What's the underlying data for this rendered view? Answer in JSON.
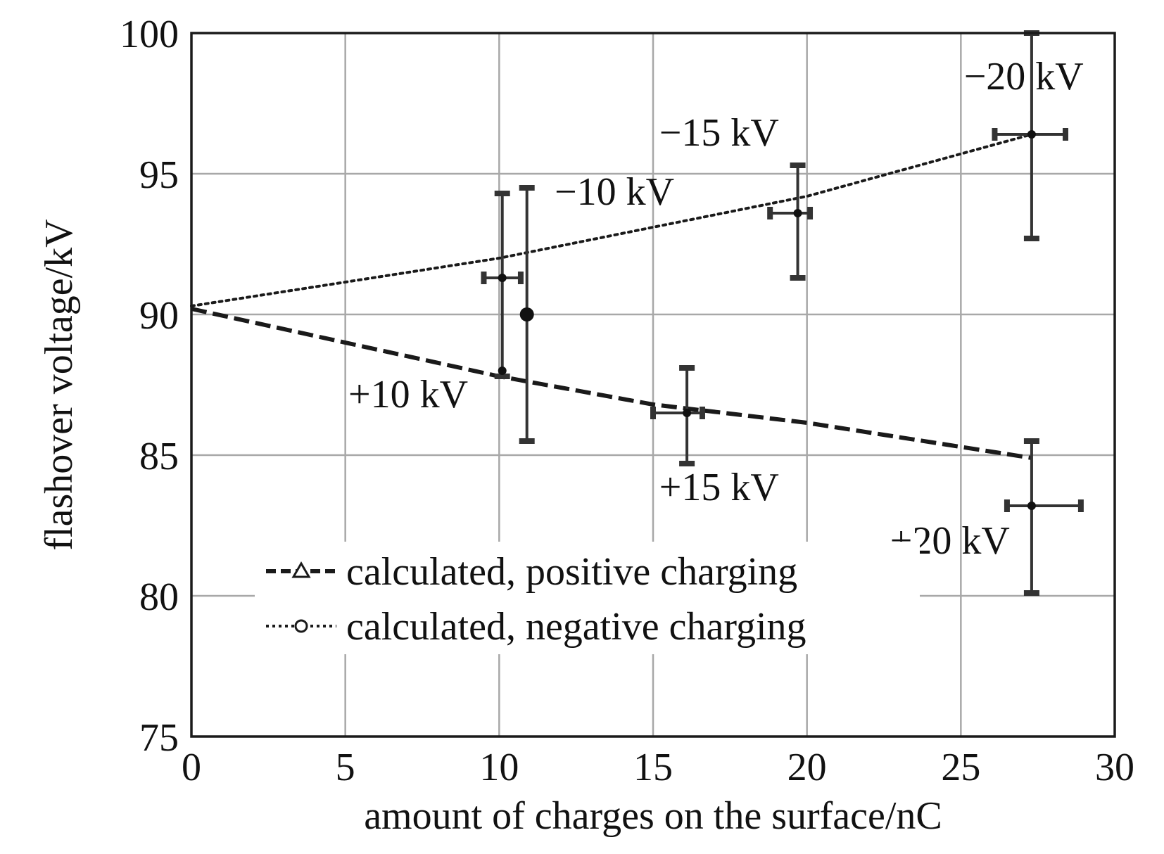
{
  "chart_data": {
    "type": "line",
    "xlabel": "amount of charges on the surface/nC",
    "ylabel": "flashover voltage/kV",
    "xlim": [
      0,
      30
    ],
    "ylim": [
      75,
      100
    ],
    "x_ticks": [
      "0",
      "5",
      "10",
      "15",
      "20",
      "25",
      "30"
    ],
    "y_ticks": [
      "75",
      "80",
      "85",
      "90",
      "95",
      "100"
    ],
    "grid": true,
    "legend_position": "lower-left",
    "series": [
      {
        "name": "calculated, positive charging",
        "line_style": "dashed",
        "marker": "triangle",
        "x": [
          0,
          10,
          15,
          20,
          27.3
        ],
        "y": [
          90.2,
          87.8,
          86.8,
          86.15,
          84.9
        ]
      },
      {
        "name": "calculated, negative charging",
        "line_style": "dotted",
        "marker": "circle",
        "x": [
          0,
          10,
          15,
          20,
          27.3
        ],
        "y": [
          90.3,
          92.0,
          93.1,
          94.2,
          96.4
        ]
      }
    ],
    "measurements": [
      {
        "label": "+10 kV",
        "x": 10.1,
        "y": 88.0,
        "x_err": [
          10.1,
          10.1
        ],
        "y_err": [
          87.8,
          94.3
        ]
      },
      {
        "label": "-10 kV",
        "x": 10.1,
        "y": 91.3,
        "x_err": [
          9.5,
          10.7
        ],
        "y_err": [
          91.3,
          91.3
        ]
      },
      {
        "label": "",
        "x": 10.9,
        "y": 90.0,
        "x_err": [
          10.9,
          10.9
        ],
        "y_err": [
          85.5,
          94.5
        ]
      },
      {
        "label": "+15 kV",
        "x": 16.1,
        "y": 86.5,
        "x_err": [
          15.0,
          16.6
        ],
        "y_err": [
          84.7,
          88.1
        ]
      },
      {
        "label": "-15 kV",
        "x": 19.7,
        "y": 93.6,
        "x_err": [
          18.8,
          20.1
        ],
        "y_err": [
          91.3,
          95.3
        ]
      },
      {
        "label": "-20 kV",
        "x": 27.3,
        "y": 96.4,
        "x_err": [
          26.1,
          28.4
        ],
        "y_err": [
          92.7,
          100
        ]
      },
      {
        "label": "+20 kV",
        "x": 27.3,
        "y": 83.2,
        "x_err": [
          26.5,
          28.9
        ],
        "y_err": [
          80.1,
          85.5
        ]
      }
    ],
    "annotations": [
      {
        "text": "−20 kV",
        "x": 25.1,
        "y": 98.0
      },
      {
        "text": "−15 kV",
        "x": 15.2,
        "y": 96.0
      },
      {
        "text": "−10 kV",
        "x": 11.8,
        "y": 93.9
      },
      {
        "text": "+10 kV",
        "x": 5.1,
        "y": 86.7
      },
      {
        "text": "+15 kV",
        "x": 15.2,
        "y": 83.4
      },
      {
        "text": "+20 kV",
        "x": 22.7,
        "y": 81.5
      }
    ]
  }
}
